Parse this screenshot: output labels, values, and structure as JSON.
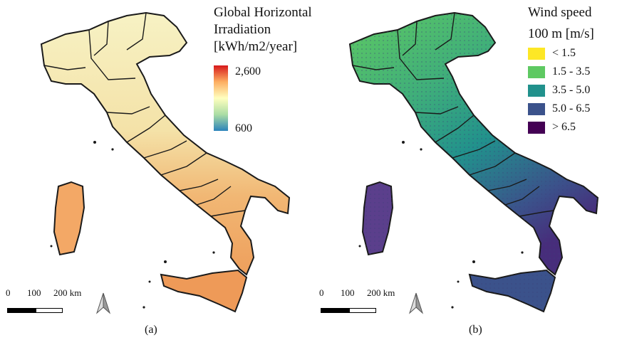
{
  "panels": {
    "a": {
      "caption": "(a)",
      "legend_title_lines": [
        "Global Horizontal",
        "Irradiation",
        "[kWh/m2/year]"
      ],
      "legend_max": "2,600",
      "legend_min": "600",
      "gradient_colors": [
        "#d7191c",
        "#fdae61",
        "#ffffbf",
        "#abdda4",
        "#2b83ba"
      ],
      "land_color": "#f6d28e"
    },
    "b": {
      "caption": "(b)",
      "legend_title_lines": [
        "Wind speed",
        "100 m [m/s]"
      ],
      "classes": [
        {
          "label": "< 1.5",
          "color": "#fde725"
        },
        {
          "label": "1.5 - 3.5",
          "color": "#5ec962"
        },
        {
          "label": "3.5 - 5.0",
          "color": "#21918c"
        },
        {
          "label": "5.0 - 6.5",
          "color": "#3b528b"
        },
        {
          "label": "> 6.5",
          "color": "#440154"
        }
      ]
    }
  },
  "scale_bar": {
    "labels": [
      "0",
      "100",
      "200 km"
    ]
  },
  "north_arrow": "north-arrow-icon"
}
